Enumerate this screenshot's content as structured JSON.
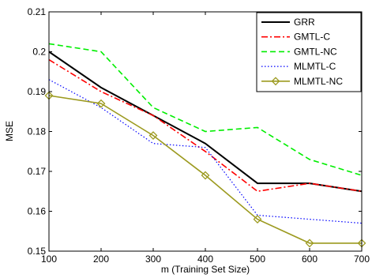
{
  "chart_data": {
    "type": "line",
    "xlabel": "m (Training Set Size)",
    "ylabel": "MSE",
    "xlim": [
      100,
      700
    ],
    "ylim": [
      0.15,
      0.21
    ],
    "x": [
      100,
      200,
      300,
      400,
      500,
      600,
      700
    ],
    "xticks": [
      "100",
      "200",
      "300",
      "400",
      "500",
      "600",
      "700"
    ],
    "yticks": [
      "0.15",
      "0.16",
      "0.17",
      "0.18",
      "0.19",
      "0.2",
      "0.21"
    ],
    "grid": false,
    "legend_position": "top-right",
    "series": [
      {
        "name": "GRR",
        "values": [
          0.2,
          0.191,
          0.184,
          0.177,
          0.167,
          0.167,
          0.165
        ],
        "color": "#000000",
        "style": "solid"
      },
      {
        "name": "GMTL-C",
        "values": [
          0.198,
          0.19,
          0.184,
          0.175,
          0.165,
          0.167,
          0.165
        ],
        "color": "#ff0000",
        "style": "dashdot"
      },
      {
        "name": "GMTL-NC",
        "values": [
          0.202,
          0.2,
          0.186,
          0.18,
          0.181,
          0.173,
          0.169
        ],
        "color": "#00ee00",
        "style": "dashed"
      },
      {
        "name": "MLMTL-C",
        "values": [
          0.193,
          0.186,
          0.177,
          0.176,
          0.159,
          0.158,
          0.157
        ],
        "color": "#0000ff",
        "style": "dotted"
      },
      {
        "name": "MLMTL-NC",
        "values": [
          0.189,
          0.187,
          0.179,
          0.169,
          0.158,
          0.152,
          0.152
        ],
        "color": "#9c9a1f",
        "style": "solid-diamond"
      }
    ]
  }
}
